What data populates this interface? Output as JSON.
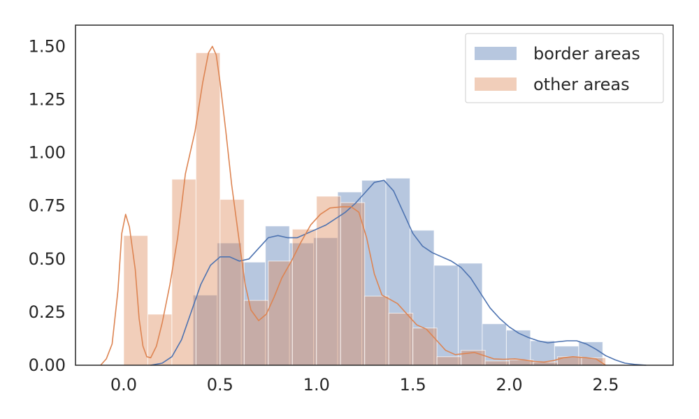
{
  "chart_data": {
    "type": "histogram",
    "xlim": [
      -0.25,
      2.85
    ],
    "ylim": [
      0,
      1.6
    ],
    "xticks": [
      "0.0",
      "0.5",
      "1.0",
      "1.5",
      "2.0",
      "2.5"
    ],
    "yticks": [
      "0.00",
      "0.25",
      "0.50",
      "0.75",
      "1.00",
      "1.25",
      "1.50"
    ],
    "grid": false,
    "legend_position": "top-right",
    "colors": {
      "border_bar": "#4c72b0",
      "border_line": "#4c72b0",
      "other_bar": "#dd8452",
      "other_line": "#dd8452",
      "axis": "#262626"
    },
    "series": [
      {
        "name": "border areas",
        "bin_width": 0.125,
        "bins": [
          {
            "x0": 0.36,
            "y": 0.33
          },
          {
            "x0": 0.485,
            "y": 0.575
          },
          {
            "x0": 0.61,
            "y": 0.485
          },
          {
            "x0": 0.735,
            "y": 0.655
          },
          {
            "x0": 0.86,
            "y": 0.575
          },
          {
            "x0": 0.985,
            "y": 0.6
          },
          {
            "x0": 1.11,
            "y": 0.815
          },
          {
            "x0": 1.235,
            "y": 0.87
          },
          {
            "x0": 1.36,
            "y": 0.88
          },
          {
            "x0": 1.485,
            "y": 0.635
          },
          {
            "x0": 1.61,
            "y": 0.47
          },
          {
            "x0": 1.735,
            "y": 0.48
          },
          {
            "x0": 1.86,
            "y": 0.195
          },
          {
            "x0": 1.985,
            "y": 0.165
          },
          {
            "x0": 2.11,
            "y": 0.115
          },
          {
            "x0": 2.235,
            "y": 0.09
          },
          {
            "x0": 2.36,
            "y": 0.11
          }
        ],
        "kde": [
          [
            0.14,
            0.0
          ],
          [
            0.2,
            0.01
          ],
          [
            0.25,
            0.04
          ],
          [
            0.3,
            0.12
          ],
          [
            0.35,
            0.25
          ],
          [
            0.4,
            0.38
          ],
          [
            0.45,
            0.47
          ],
          [
            0.5,
            0.51
          ],
          [
            0.55,
            0.51
          ],
          [
            0.6,
            0.49
          ],
          [
            0.65,
            0.5
          ],
          [
            0.7,
            0.55
          ],
          [
            0.75,
            0.6
          ],
          [
            0.8,
            0.61
          ],
          [
            0.85,
            0.6
          ],
          [
            0.9,
            0.6
          ],
          [
            0.95,
            0.62
          ],
          [
            1.0,
            0.64
          ],
          [
            1.05,
            0.66
          ],
          [
            1.1,
            0.69
          ],
          [
            1.15,
            0.72
          ],
          [
            1.2,
            0.76
          ],
          [
            1.25,
            0.81
          ],
          [
            1.3,
            0.86
          ],
          [
            1.35,
            0.87
          ],
          [
            1.4,
            0.82
          ],
          [
            1.45,
            0.72
          ],
          [
            1.5,
            0.62
          ],
          [
            1.55,
            0.56
          ],
          [
            1.6,
            0.53
          ],
          [
            1.65,
            0.51
          ],
          [
            1.7,
            0.49
          ],
          [
            1.75,
            0.46
          ],
          [
            1.8,
            0.41
          ],
          [
            1.85,
            0.34
          ],
          [
            1.9,
            0.27
          ],
          [
            1.95,
            0.22
          ],
          [
            2.0,
            0.18
          ],
          [
            2.05,
            0.15
          ],
          [
            2.1,
            0.13
          ],
          [
            2.15,
            0.115
          ],
          [
            2.2,
            0.105
          ],
          [
            2.25,
            0.11
          ],
          [
            2.3,
            0.115
          ],
          [
            2.35,
            0.115
          ],
          [
            2.4,
            0.1
          ],
          [
            2.45,
            0.075
          ],
          [
            2.5,
            0.045
          ],
          [
            2.55,
            0.025
          ],
          [
            2.6,
            0.01
          ],
          [
            2.65,
            0.004
          ],
          [
            2.71,
            0.0
          ]
        ]
      },
      {
        "name": "other areas",
        "bin_width": 0.125,
        "bins": [
          {
            "x0": 0.0,
            "y": 0.61
          },
          {
            "x0": 0.125,
            "y": 0.24
          },
          {
            "x0": 0.25,
            "y": 0.875
          },
          {
            "x0": 0.375,
            "y": 1.47
          },
          {
            "x0": 0.5,
            "y": 0.78
          },
          {
            "x0": 0.625,
            "y": 0.305
          },
          {
            "x0": 0.75,
            "y": 0.49
          },
          {
            "x0": 0.875,
            "y": 0.64
          },
          {
            "x0": 1.0,
            "y": 0.795
          },
          {
            "x0": 1.125,
            "y": 0.765
          },
          {
            "x0": 1.25,
            "y": 0.325
          },
          {
            "x0": 1.375,
            "y": 0.245
          },
          {
            "x0": 1.5,
            "y": 0.175
          },
          {
            "x0": 1.625,
            "y": 0.04
          },
          {
            "x0": 1.75,
            "y": 0.07
          },
          {
            "x0": 1.875,
            "y": 0.02
          },
          {
            "x0": 2.0,
            "y": 0.025
          },
          {
            "x0": 2.125,
            "y": 0.015
          },
          {
            "x0": 2.25,
            "y": 0.04
          },
          {
            "x0": 2.375,
            "y": 0.035
          }
        ],
        "kde": [
          [
            -0.12,
            0.0
          ],
          [
            -0.09,
            0.03
          ],
          [
            -0.06,
            0.1
          ],
          [
            -0.03,
            0.35
          ],
          [
            -0.01,
            0.62
          ],
          [
            0.01,
            0.71
          ],
          [
            0.03,
            0.65
          ],
          [
            0.06,
            0.45
          ],
          [
            0.08,
            0.22
          ],
          [
            0.1,
            0.09
          ],
          [
            0.12,
            0.04
          ],
          [
            0.14,
            0.035
          ],
          [
            0.17,
            0.09
          ],
          [
            0.2,
            0.2
          ],
          [
            0.24,
            0.38
          ],
          [
            0.28,
            0.6
          ],
          [
            0.32,
            0.9
          ],
          [
            0.37,
            1.1
          ],
          [
            0.41,
            1.33
          ],
          [
            0.44,
            1.47
          ],
          [
            0.46,
            1.5
          ],
          [
            0.48,
            1.46
          ],
          [
            0.5,
            1.33
          ],
          [
            0.53,
            1.1
          ],
          [
            0.56,
            0.85
          ],
          [
            0.6,
            0.58
          ],
          [
            0.63,
            0.38
          ],
          [
            0.66,
            0.26
          ],
          [
            0.7,
            0.21
          ],
          [
            0.74,
            0.24
          ],
          [
            0.78,
            0.32
          ],
          [
            0.82,
            0.41
          ],
          [
            0.87,
            0.49
          ],
          [
            0.92,
            0.58
          ],
          [
            0.97,
            0.66
          ],
          [
            1.02,
            0.71
          ],
          [
            1.07,
            0.74
          ],
          [
            1.13,
            0.745
          ],
          [
            1.18,
            0.745
          ],
          [
            1.22,
            0.72
          ],
          [
            1.26,
            0.6
          ],
          [
            1.3,
            0.43
          ],
          [
            1.34,
            0.33
          ],
          [
            1.38,
            0.31
          ],
          [
            1.42,
            0.29
          ],
          [
            1.47,
            0.24
          ],
          [
            1.52,
            0.19
          ],
          [
            1.57,
            0.17
          ],
          [
            1.62,
            0.12
          ],
          [
            1.67,
            0.07
          ],
          [
            1.72,
            0.05
          ],
          [
            1.77,
            0.055
          ],
          [
            1.82,
            0.06
          ],
          [
            1.87,
            0.045
          ],
          [
            1.92,
            0.03
          ],
          [
            1.97,
            0.028
          ],
          [
            2.03,
            0.03
          ],
          [
            2.08,
            0.025
          ],
          [
            2.13,
            0.018
          ],
          [
            2.18,
            0.015
          ],
          [
            2.23,
            0.022
          ],
          [
            2.28,
            0.035
          ],
          [
            2.33,
            0.04
          ],
          [
            2.4,
            0.035
          ],
          [
            2.45,
            0.03
          ],
          [
            2.5,
            0.0
          ]
        ]
      }
    ]
  }
}
